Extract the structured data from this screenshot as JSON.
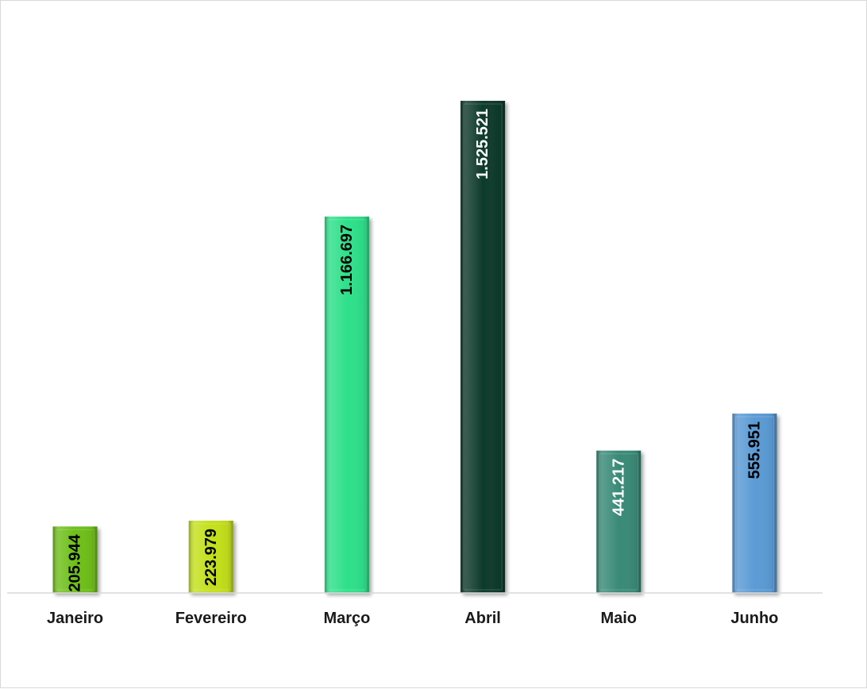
{
  "chart_data": {
    "type": "bar",
    "title": "",
    "xlabel": "",
    "ylabel": "",
    "categories": [
      "Janeiro",
      "Fevereiro",
      "Março",
      "Abril",
      "Maio",
      "Junho"
    ],
    "values": [
      205944,
      223979,
      1166697,
      1525521,
      441217,
      555951
    ],
    "value_labels": [
      "205.944",
      "223.979",
      "1.166.697",
      "1.525.521",
      "441.217",
      "555.951"
    ],
    "bar_colors": [
      "#6fbf1a",
      "#c4e01c",
      "#2ee08a",
      "#0f3b2c",
      "#3a8a78",
      "#5b9bd5"
    ],
    "label_colors": [
      "#000000",
      "#000000",
      "#000000",
      "#ffffff",
      "#ffffff",
      "#000000"
    ],
    "ylim": [
      0,
      1525521
    ],
    "grid": false,
    "legend": "none"
  }
}
